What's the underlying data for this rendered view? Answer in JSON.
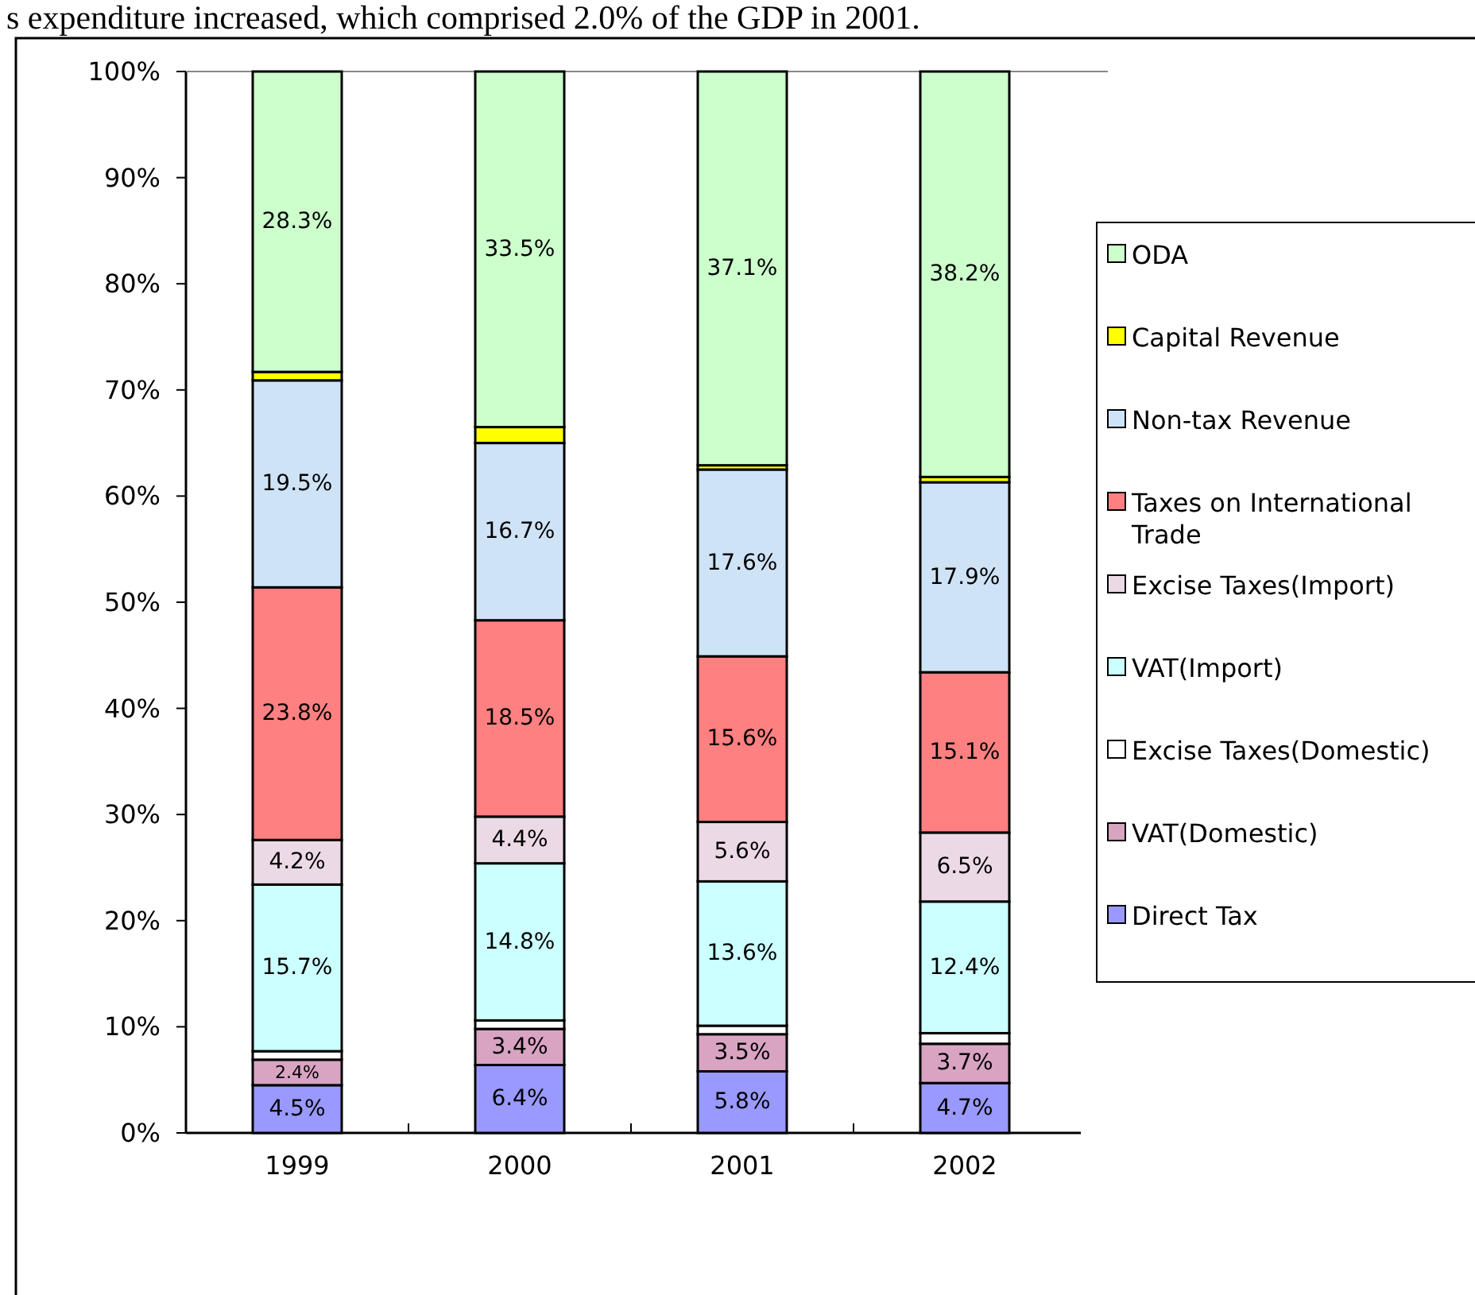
{
  "chart_data": {
    "type": "bar",
    "stacked": true,
    "categories": [
      "1999",
      "2000",
      "2001",
      "2002"
    ],
    "ylim": [
      0,
      100
    ],
    "yticks": [
      {
        "value": 0,
        "label": "0%"
      },
      {
        "value": 10,
        "label": "10%"
      },
      {
        "value": 20,
        "label": "20%"
      },
      {
        "value": 30,
        "label": "30%"
      },
      {
        "value": 40,
        "label": "40%"
      },
      {
        "value": 50,
        "label": "50%"
      },
      {
        "value": 60,
        "label": "60%"
      },
      {
        "value": 70,
        "label": "70%"
      },
      {
        "value": 80,
        "label": "80%"
      },
      {
        "value": 90,
        "label": "90%"
      },
      {
        "value": 100,
        "label": "100%"
      }
    ],
    "legend": "right",
    "annotations": [
      "s expenditure increased, which comprised 2.0% of the GDP in 2001."
    ],
    "series": [
      {
        "name": "Direct Tax",
        "color": "#9999ff",
        "values": [
          4.5,
          6.4,
          5.8,
          4.7
        ],
        "value_labels": [
          "4.5%",
          "6.4%",
          "5.8%",
          "4.7%"
        ]
      },
      {
        "name": "VAT(Domestic)",
        "color": "#d9a3c2",
        "values": [
          2.4,
          3.4,
          3.5,
          3.7
        ],
        "value_labels": [
          "2.4%",
          "3.4%",
          "3.5%",
          "3.7%"
        ]
      },
      {
        "name": "Excise Taxes(Domestic)",
        "color": "#ffffff",
        "values": [
          0.8,
          0.8,
          0.8,
          1.0
        ],
        "value_labels": [
          null,
          null,
          null,
          null
        ]
      },
      {
        "name": "VAT(Import)",
        "color": "#ccffff",
        "values": [
          15.7,
          14.8,
          13.6,
          12.4
        ],
        "value_labels": [
          "15.7%",
          "14.8%",
          "13.6%",
          "12.4%"
        ]
      },
      {
        "name": "Excise Taxes(Import)",
        "color": "#ecd9e6",
        "values": [
          4.2,
          4.4,
          5.6,
          6.5
        ],
        "value_labels": [
          "4.2%",
          "4.4%",
          "5.6%",
          "6.5%"
        ]
      },
      {
        "name": "Taxes on International Trade",
        "color": "#ff8080",
        "values": [
          23.8,
          18.5,
          15.6,
          15.1
        ],
        "value_labels": [
          "23.8%",
          "18.5%",
          "15.6%",
          "15.1%"
        ]
      },
      {
        "name": "Non-tax Revenue",
        "color": "#cfe3f7",
        "values": [
          19.5,
          16.7,
          17.6,
          17.9
        ],
        "value_labels": [
          "19.5%",
          "16.7%",
          "17.6%",
          "17.9%"
        ]
      },
      {
        "name": "Capital Revenue",
        "color": "#ffff00",
        "values": [
          0.8,
          1.5,
          0.4,
          0.5
        ],
        "value_labels": [
          null,
          null,
          null,
          null
        ]
      },
      {
        "name": "ODA",
        "color": "#ccffcc",
        "values": [
          28.3,
          33.5,
          37.1,
          38.2
        ],
        "value_labels": [
          "28.3%",
          "33.5%",
          "37.1%",
          "38.2%"
        ]
      }
    ]
  }
}
